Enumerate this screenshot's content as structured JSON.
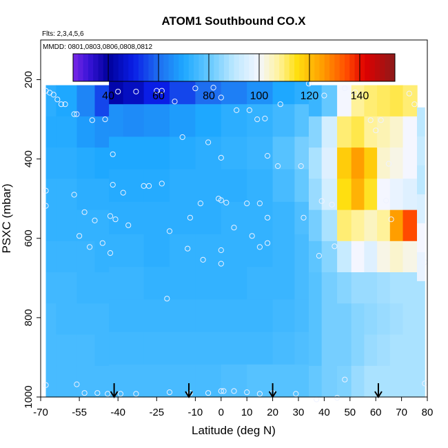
{
  "chart_data": {
    "type": "heatmap",
    "title": "ATOM1 Southbound CO.X",
    "annotations": {
      "flights": "Flts: 2,3,4,5,6",
      "dates": "MMDD: 0801,0803,0806,0808,0812"
    },
    "xlabel": "Latitude (deg N)",
    "ylabel": "PSXC (mbar)",
    "xlim": [
      -70,
      80
    ],
    "ylim": [
      1000,
      100
    ],
    "x_ticks": [
      -70,
      -55,
      -40,
      -25,
      -10,
      0,
      10,
      20,
      30,
      40,
      50,
      60,
      70,
      80
    ],
    "y_ticks": [
      200,
      400,
      600,
      800,
      1000
    ],
    "colorbar": {
      "range": [
        26,
        154
      ],
      "ticks": [
        40,
        60,
        80,
        100,
        120,
        140
      ],
      "stops": [
        {
          "v": 26,
          "color": "#7a28e6"
        },
        {
          "v": 32,
          "color": "#3a14d8"
        },
        {
          "v": 40,
          "color": "#00009c"
        },
        {
          "v": 50,
          "color": "#0a1ee6"
        },
        {
          "v": 60,
          "color": "#1e6ef0"
        },
        {
          "v": 70,
          "color": "#1ea8ff"
        },
        {
          "v": 80,
          "color": "#64c8ff"
        },
        {
          "v": 90,
          "color": "#bce8ff"
        },
        {
          "v": 100,
          "color": "#f4f6ff"
        },
        {
          "v": 108,
          "color": "#fff29a"
        },
        {
          "v": 115,
          "color": "#ffdf10"
        },
        {
          "v": 125,
          "color": "#ff9e00"
        },
        {
          "v": 135,
          "color": "#ff4a00"
        },
        {
          "v": 142,
          "color": "#e00000"
        },
        {
          "v": 154,
          "color": "#8c1a1a"
        }
      ]
    },
    "arrows_latitude": [
      -41.5,
      -12.5,
      20,
      61
    ],
    "field": {
      "lat_range": [
        -68,
        79
      ],
      "profiles": [
        {
          "lat": -68,
          "top": 214,
          "base": 1000,
          "v": [
            72,
            71,
            72,
            73,
            73,
            74,
            75,
            76,
            76,
            76
          ]
        },
        {
          "lat": -60,
          "top": 214,
          "base": 1000,
          "v": [
            70,
            71,
            72,
            73,
            73,
            74,
            75,
            75,
            76,
            76
          ]
        },
        {
          "lat": -52,
          "top": 214,
          "base": 1000,
          "v": [
            64,
            68,
            71,
            72,
            73,
            74,
            74,
            75,
            76,
            76
          ]
        },
        {
          "lat": -46,
          "top": 214,
          "base": 1000,
          "v": [
            55,
            66,
            70,
            72,
            73,
            73,
            74,
            75,
            75,
            76
          ]
        },
        {
          "lat": -41,
          "top": 180,
          "base": 1000,
          "v": [
            42,
            66,
            70,
            71,
            72,
            73,
            74,
            74,
            75,
            76
          ]
        },
        {
          "lat": -35,
          "top": 180,
          "base": 1000,
          "v": [
            45,
            65,
            70,
            71,
            72,
            73,
            74,
            74,
            75,
            76
          ]
        },
        {
          "lat": -25,
          "top": 180,
          "base": 1000,
          "v": [
            50,
            66,
            70,
            71,
            72,
            72,
            73,
            74,
            75,
            76
          ]
        },
        {
          "lat": -15,
          "top": 180,
          "base": 1000,
          "v": [
            55,
            68,
            71,
            72,
            72,
            73,
            73,
            74,
            75,
            76
          ]
        },
        {
          "lat": -5,
          "top": 180,
          "base": 1000,
          "v": [
            60,
            70,
            72,
            72,
            72,
            73,
            73,
            74,
            75,
            76
          ]
        },
        {
          "lat": 5,
          "top": 180,
          "base": 1000,
          "v": [
            63,
            72,
            73,
            72,
            73,
            73,
            73,
            74,
            75,
            77
          ]
        },
        {
          "lat": 15,
          "top": 180,
          "base": 1000,
          "v": [
            66,
            73,
            74,
            73,
            73,
            73,
            74,
            74,
            75,
            78
          ]
        },
        {
          "lat": 25,
          "top": 180,
          "base": 1000,
          "v": [
            70,
            75,
            78,
            76,
            74,
            74,
            74,
            75,
            76,
            78
          ]
        },
        {
          "lat": 32,
          "top": 180,
          "base": 1000,
          "v": [
            72,
            78,
            82,
            80,
            77,
            76,
            76,
            76,
            77,
            78
          ]
        },
        {
          "lat": 36,
          "top": 214,
          "base": 1000,
          "v": [
            74,
            84,
            88,
            86,
            82,
            79,
            78,
            78,
            78,
            80
          ]
        },
        {
          "lat": 42,
          "top": 214,
          "base": 1000,
          "v": [
            80,
            94,
            96,
            94,
            88,
            84,
            82,
            82,
            82,
            82
          ]
        },
        {
          "lat": 48,
          "top": 214,
          "base": 1000,
          "v": [
            100,
            110,
            118,
            115,
            110,
            92,
            84,
            82,
            82,
            83
          ]
        },
        {
          "lat": 53,
          "top": 214,
          "base": 1000,
          "v": [
            108,
            112,
            125,
            122,
            108,
            100,
            86,
            84,
            84,
            86
          ]
        },
        {
          "lat": 58,
          "top": 214,
          "base": 1000,
          "v": [
            110,
            108,
            118,
            114,
            105,
            96,
            86,
            85,
            86,
            88
          ]
        },
        {
          "lat": 63,
          "top": 214,
          "base": 1000,
          "v": [
            111,
            106,
            104,
            100,
            108,
            102,
            87,
            86,
            87,
            88
          ]
        },
        {
          "lat": 68,
          "top": 214,
          "base": 1000,
          "v": [
            112,
            104,
            102,
            98,
            125,
            104,
            88,
            87,
            88,
            88
          ]
        },
        {
          "lat": 73,
          "top": 214,
          "base": 1000,
          "v": [
            110,
            100,
            100,
            96,
            135,
            102,
            88,
            88,
            88,
            88
          ]
        },
        {
          "lat": 79,
          "top": 270,
          "base": 1000,
          "v": [
            90,
            92,
            90,
            95,
            100,
            98,
            88,
            88,
            88,
            88
          ]
        }
      ]
    },
    "observations": [
      {
        "lat": -68,
        "p": 228
      },
      {
        "lat": -66.5,
        "p": 233
      },
      {
        "lat": -65,
        "p": 238
      },
      {
        "lat": -63.5,
        "p": 250
      },
      {
        "lat": -62,
        "p": 262
      },
      {
        "lat": -60.5,
        "p": 262
      },
      {
        "lat": -57,
        "p": 287
      },
      {
        "lat": -56,
        "p": 287
      },
      {
        "lat": -50,
        "p": 302
      },
      {
        "lat": -45,
        "p": 300
      },
      {
        "lat": -40,
        "p": 230
      },
      {
        "lat": -41.5,
        "p": 196
      },
      {
        "lat": -33,
        "p": 230
      },
      {
        "lat": -25,
        "p": 228
      },
      {
        "lat": -23,
        "p": 228
      },
      {
        "lat": -18,
        "p": 255
      },
      {
        "lat": -10,
        "p": 222
      },
      {
        "lat": -3,
        "p": 220
      },
      {
        "lat": 0,
        "p": 245
      },
      {
        "lat": 6,
        "p": 277
      },
      {
        "lat": 11,
        "p": 277
      },
      {
        "lat": 14,
        "p": 300
      },
      {
        "lat": 17,
        "p": 298
      },
      {
        "lat": 23,
        "p": 262
      },
      {
        "lat": 26,
        "p": 182
      },
      {
        "lat": 34,
        "p": 210
      },
      {
        "lat": 40,
        "p": 240
      },
      {
        "lat": 48,
        "p": 222
      },
      {
        "lat": 52,
        "p": 232
      },
      {
        "lat": 58,
        "p": 302
      },
      {
        "lat": 62,
        "p": 302
      },
      {
        "lat": 73,
        "p": 235
      },
      {
        "lat": 75,
        "p": 262
      },
      {
        "lat": -42,
        "p": 388
      },
      {
        "lat": -15,
        "p": 345
      },
      {
        "lat": -5,
        "p": 358
      },
      {
        "lat": 0,
        "p": 397
      },
      {
        "lat": 18,
        "p": 392
      },
      {
        "lat": 22,
        "p": 418
      },
      {
        "lat": 31,
        "p": 418
      },
      {
        "lat": 60,
        "p": 328
      },
      {
        "lat": 65,
        "p": 412
      },
      {
        "lat": -68,
        "p": 480
      },
      {
        "lat": -57,
        "p": 490
      },
      {
        "lat": -42,
        "p": 465
      },
      {
        "lat": -38,
        "p": 485
      },
      {
        "lat": -30,
        "p": 468
      },
      {
        "lat": -28,
        "p": 468
      },
      {
        "lat": -23,
        "p": 462
      },
      {
        "lat": -68,
        "p": 518
      },
      {
        "lat": -53,
        "p": 534
      },
      {
        "lat": -49,
        "p": 555
      },
      {
        "lat": -43,
        "p": 544
      },
      {
        "lat": -41,
        "p": 552
      },
      {
        "lat": -36,
        "p": 567
      },
      {
        "lat": -20,
        "p": 582
      },
      {
        "lat": -12,
        "p": 548
      },
      {
        "lat": -8,
        "p": 512
      },
      {
        "lat": -1,
        "p": 500
      },
      {
        "lat": 0,
        "p": 504
      },
      {
        "lat": 2,
        "p": 510
      },
      {
        "lat": 10,
        "p": 512
      },
      {
        "lat": 15,
        "p": 512
      },
      {
        "lat": 18,
        "p": 548
      },
      {
        "lat": 5,
        "p": 573
      },
      {
        "lat": 12,
        "p": 594
      },
      {
        "lat": 15,
        "p": 622
      },
      {
        "lat": 18,
        "p": 612
      },
      {
        "lat": 32,
        "p": 548
      },
      {
        "lat": 39,
        "p": 506
      },
      {
        "lat": 43,
        "p": 515
      },
      {
        "lat": 44,
        "p": 620
      },
      {
        "lat": 38,
        "p": 644
      },
      {
        "lat": 64,
        "p": 505
      },
      {
        "lat": 66,
        "p": 552
      },
      {
        "lat": -55,
        "p": 594
      },
      {
        "lat": -51,
        "p": 622
      },
      {
        "lat": -46,
        "p": 612
      },
      {
        "lat": -43,
        "p": 637
      },
      {
        "lat": -13,
        "p": 626
      },
      {
        "lat": -7,
        "p": 654
      },
      {
        "lat": 0,
        "p": 630
      },
      {
        "lat": 0,
        "p": 664
      },
      {
        "lat": 79,
        "p": 660
      },
      {
        "lat": -21,
        "p": 752
      },
      {
        "lat": 48,
        "p": 956
      },
      {
        "lat": 79,
        "p": 966
      },
      {
        "lat": -68,
        "p": 970
      },
      {
        "lat": -56,
        "p": 968
      },
      {
        "lat": -53,
        "p": 990
      },
      {
        "lat": -48,
        "p": 990
      },
      {
        "lat": -44,
        "p": 992
      },
      {
        "lat": -39,
        "p": 992
      },
      {
        "lat": -33,
        "p": 992
      },
      {
        "lat": -20,
        "p": 988
      },
      {
        "lat": -12,
        "p": 990
      },
      {
        "lat": -5,
        "p": 990
      },
      {
        "lat": 0,
        "p": 985
      },
      {
        "lat": 1,
        "p": 985
      },
      {
        "lat": 5,
        "p": 985
      },
      {
        "lat": 10,
        "p": 988
      },
      {
        "lat": 15,
        "p": 992
      },
      {
        "lat": 20,
        "p": 990
      },
      {
        "lat": 29,
        "p": 992
      },
      {
        "lat": 37,
        "p": 1006
      },
      {
        "lat": 45,
        "p": 1002
      }
    ]
  }
}
